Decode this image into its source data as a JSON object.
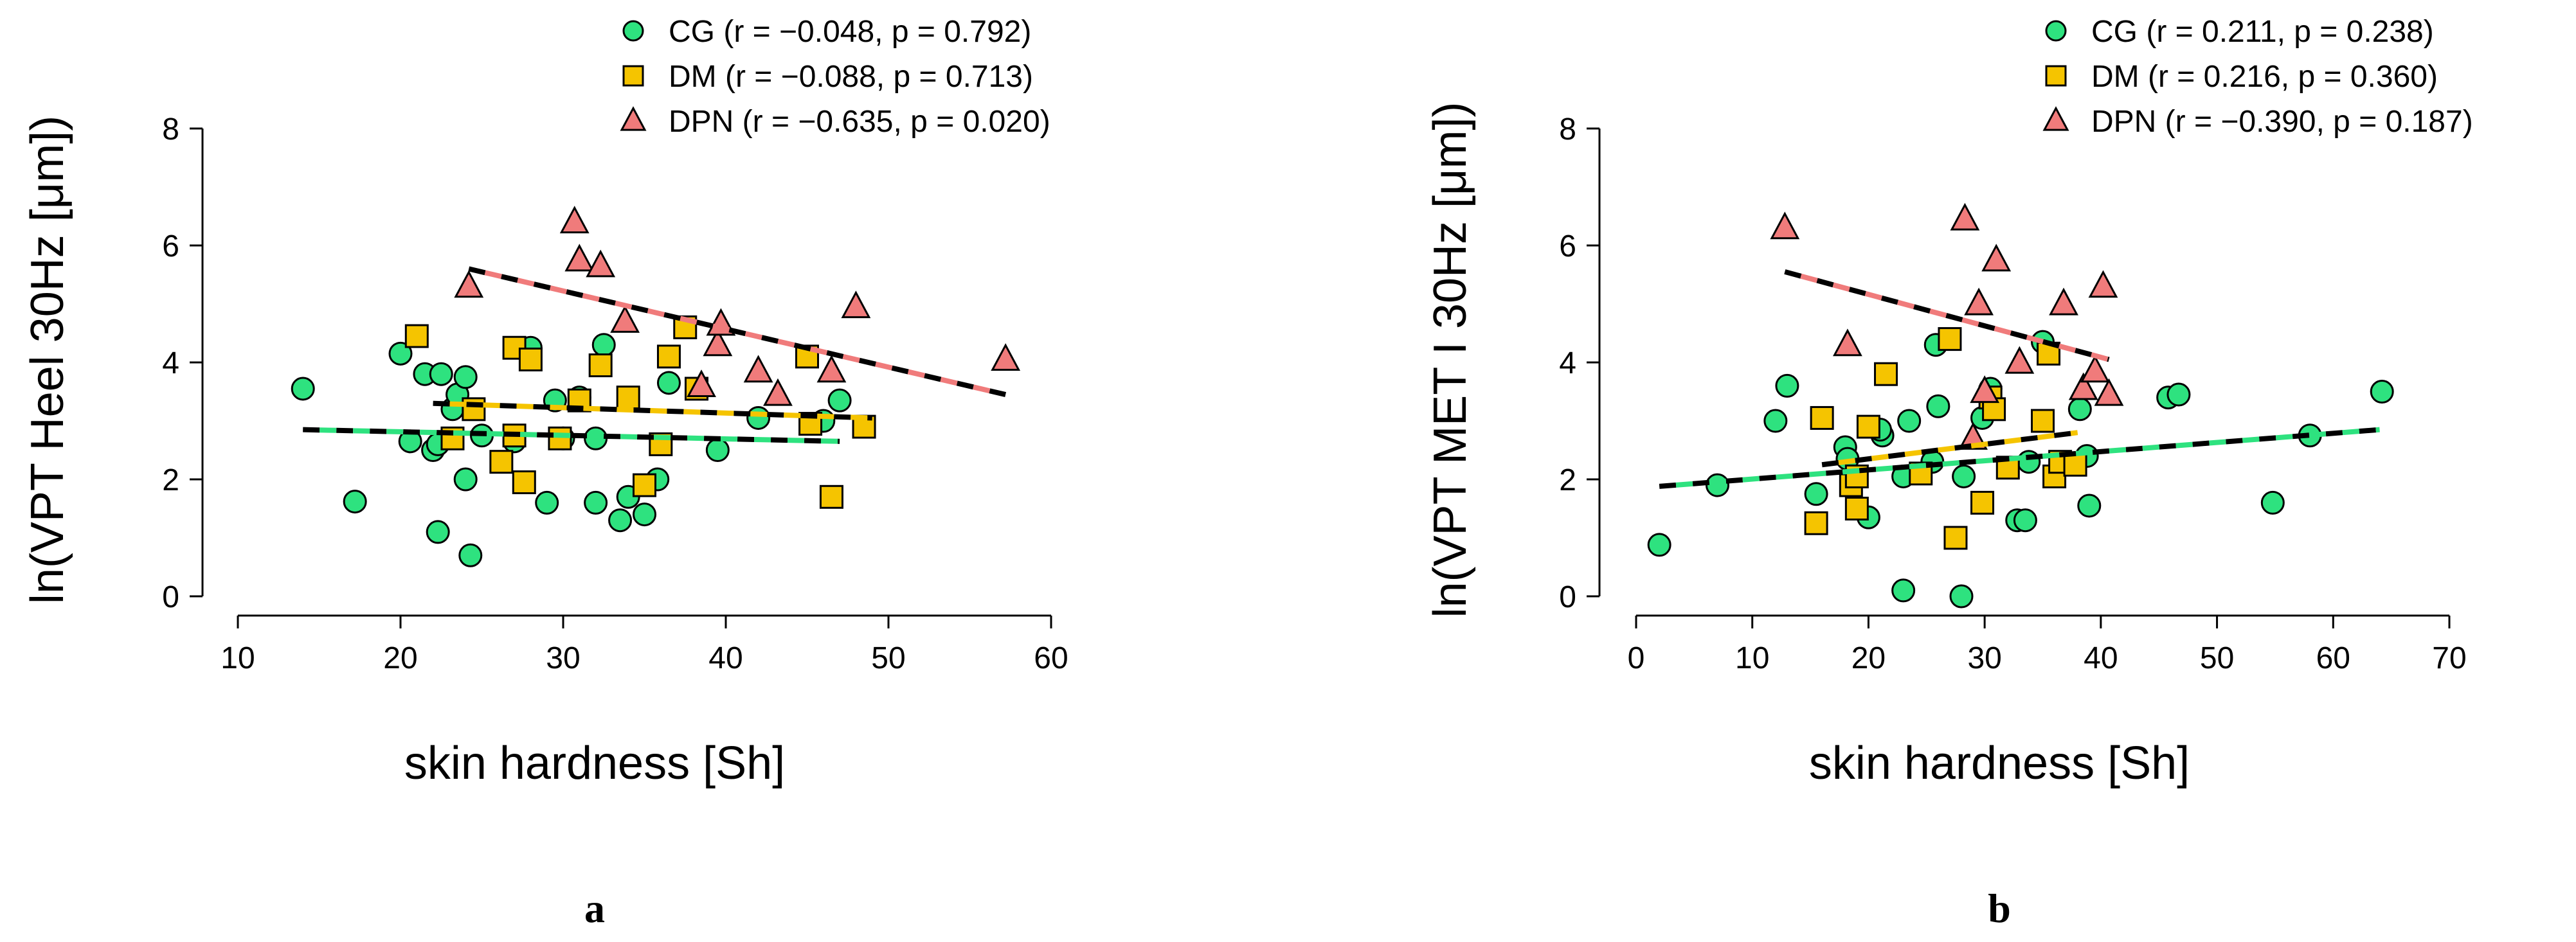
{
  "colors": {
    "CG": "#2ee27f",
    "DM": "#f5c400",
    "DPN": "#f07b7b",
    "CG_line": "#2ee27f",
    "DM_line": "#f5c400",
    "DPN_line": "#f07b7b",
    "outline": "#000000"
  },
  "chart_data": [
    {
      "type": "scatter",
      "panel_label": "a",
      "xlabel": "skin hardness [Sh]",
      "ylabel": "ln(VPT Heel 30Hz [μm])",
      "xlim": [
        10,
        60
      ],
      "ylim": [
        0,
        8
      ],
      "xticks": [
        10,
        20,
        30,
        40,
        50,
        60
      ],
      "yticks": [
        0,
        2,
        4,
        6,
        8
      ],
      "xtick_labels": [
        "10",
        "20",
        "30",
        "40",
        "50",
        "60"
      ],
      "ytick_labels": [
        "0",
        "2",
        "4",
        "6",
        "8"
      ],
      "grid": false,
      "legend_position": "top",
      "series": [
        {
          "name": "CG",
          "marker": "circle",
          "legend": "CG (r = −0.048, p = 0.792)",
          "points": [
            [
              14,
              3.55
            ],
            [
              17.2,
              1.62
            ],
            [
              20,
              4.15
            ],
            [
              20.6,
              2.65
            ],
            [
              21.5,
              3.8
            ],
            [
              22,
              2.5
            ],
            [
              22.3,
              2.6
            ],
            [
              22.5,
              3.8
            ],
            [
              23.2,
              3.2
            ],
            [
              23.5,
              3.45
            ],
            [
              24,
              3.75
            ],
            [
              24,
              2
            ],
            [
              24.3,
              0.7
            ],
            [
              25,
              2.75
            ],
            [
              22.3,
              1.1
            ],
            [
              27,
              2.65
            ],
            [
              28,
              4.25
            ],
            [
              29,
              1.6
            ],
            [
              29.5,
              3.35
            ],
            [
              30,
              2.7
            ],
            [
              31,
              3.4
            ],
            [
              32,
              2.7
            ],
            [
              32,
              1.6
            ],
            [
              32.5,
              4.3
            ],
            [
              33.5,
              1.3
            ],
            [
              34,
              1.7
            ],
            [
              35,
              1.4
            ],
            [
              35.8,
              2
            ],
            [
              36.5,
              3.65
            ],
            [
              39.5,
              2.5
            ],
            [
              42,
              3.05
            ],
            [
              46,
              3.0
            ],
            [
              47,
              3.35
            ]
          ],
          "trend": {
            "x": [
              14,
              47
            ],
            "y": [
              2.85,
              2.65
            ]
          }
        },
        {
          "name": "DM",
          "marker": "square",
          "legend": "DM (r = −0.088, p = 0.713)",
          "points": [
            [
              21,
              4.45
            ],
            [
              23.2,
              2.7
            ],
            [
              24.5,
              3.2
            ],
            [
              26.2,
              2.3
            ],
            [
              27,
              4.25
            ],
            [
              27,
              2.75
            ],
            [
              27.6,
              1.95
            ],
            [
              28,
              4.05
            ],
            [
              29.8,
              2.7
            ],
            [
              31,
              3.35
            ],
            [
              32.3,
              3.95
            ],
            [
              34,
              3.4
            ],
            [
              35,
              1.9
            ],
            [
              36,
              2.6
            ],
            [
              36.5,
              4.1
            ],
            [
              37.5,
              4.6
            ],
            [
              38.2,
              3.55
            ],
            [
              45,
              4.1
            ],
            [
              45.2,
              2.95
            ],
            [
              46.5,
              1.7
            ],
            [
              48.5,
              2.9
            ]
          ],
          "trend": {
            "x": [
              22,
              49
            ],
            "y": [
              3.3,
              3.05
            ]
          }
        },
        {
          "name": "DPN",
          "marker": "triangle",
          "legend": "DPN (r = −0.635, p = 0.020)",
          "points": [
            [
              24.2,
              5.3
            ],
            [
              30.7,
              6.4
            ],
            [
              31,
              5.75
            ],
            [
              32.3,
              5.65
            ],
            [
              33.8,
              4.7
            ],
            [
              38.5,
              3.6
            ],
            [
              39.5,
              4.3
            ],
            [
              39.7,
              4.65
            ],
            [
              42,
              3.85
            ],
            [
              43.2,
              3.45
            ],
            [
              46.5,
              3.85
            ],
            [
              48,
              4.95
            ],
            [
              57.2,
              4.05
            ]
          ],
          "trend": {
            "x": [
              24.2,
              57.2
            ],
            "y": [
              5.6,
              3.45
            ]
          }
        }
      ]
    },
    {
      "type": "scatter",
      "panel_label": "b",
      "xlabel": "skin hardness [Sh]",
      "ylabel": "ln(VPT MET I 30Hz [μm])",
      "xlim": [
        0,
        70
      ],
      "ylim": [
        0,
        8
      ],
      "xticks": [
        0,
        10,
        20,
        30,
        40,
        50,
        60,
        70
      ],
      "yticks": [
        0,
        2,
        4,
        6,
        8
      ],
      "xtick_labels": [
        "0",
        "10",
        "20",
        "30",
        "40",
        "50",
        "60",
        "70"
      ],
      "ytick_labels": [
        "0",
        "2",
        "4",
        "6",
        "8"
      ],
      "grid": false,
      "legend_position": "top-right",
      "series": [
        {
          "name": "CG",
          "marker": "circle",
          "legend": "CG (r = 0.211, p = 0.238)",
          "points": [
            [
              2,
              0.88
            ],
            [
              7,
              1.9
            ],
            [
              12,
              3.0
            ],
            [
              13,
              3.6
            ],
            [
              15.5,
              1.75
            ],
            [
              18,
              2.55
            ],
            [
              18.2,
              2.35
            ],
            [
              20,
              1.35
            ],
            [
              21.2,
              2.75
            ],
            [
              21,
              2.85
            ],
            [
              23,
              2.05
            ],
            [
              23,
              0.1
            ],
            [
              23.5,
              3.0
            ],
            [
              25.5,
              2.3
            ],
            [
              25.8,
              4.3
            ],
            [
              26,
              3.25
            ],
            [
              27.5,
              1.0
            ],
            [
              28,
              0
            ],
            [
              28.2,
              2.05
            ],
            [
              29.8,
              3.05
            ],
            [
              30.5,
              3.55
            ],
            [
              32.8,
              1.3
            ],
            [
              33.5,
              1.3
            ],
            [
              33.8,
              2.3
            ],
            [
              35,
              4.35
            ],
            [
              38.2,
              3.2
            ],
            [
              38.8,
              2.4
            ],
            [
              39,
              1.55
            ],
            [
              45.8,
              3.4
            ],
            [
              46.7,
              3.45
            ],
            [
              54.8,
              1.6
            ],
            [
              58,
              2.75
            ],
            [
              64.2,
              3.5
            ]
          ],
          "trend": {
            "x": [
              2,
              64
            ],
            "y": [
              1.88,
              2.85
            ]
          }
        },
        {
          "name": "DM",
          "marker": "square",
          "legend": "DM (r = 0.216, p = 0.360)",
          "points": [
            [
              15.5,
              1.25
            ],
            [
              16,
              3.05
            ],
            [
              18.5,
              1.9
            ],
            [
              19,
              2.05
            ],
            [
              19,
              1.5
            ],
            [
              20,
              2.9
            ],
            [
              21.5,
              3.8
            ],
            [
              24.5,
              2.1
            ],
            [
              27,
              4.4
            ],
            [
              27.5,
              1.0
            ],
            [
              29.8,
              1.6
            ],
            [
              30.5,
              3.4
            ],
            [
              30.8,
              3.2
            ],
            [
              32,
              2.2
            ],
            [
              35,
              3.0
            ],
            [
              35.5,
              4.15
            ],
            [
              36,
              2.05
            ],
            [
              36.5,
              2.3
            ],
            [
              37.8,
              2.25
            ]
          ],
          "trend": {
            "x": [
              16,
              38
            ],
            "y": [
              2.25,
              2.8
            ]
          }
        },
        {
          "name": "DPN",
          "marker": "triangle",
          "legend": "DPN (r = −0.390, p = 0.187)",
          "points": [
            [
              12.8,
              6.3
            ],
            [
              18.2,
              4.3
            ],
            [
              28.3,
              6.45
            ],
            [
              29,
              2.7
            ],
            [
              29.5,
              5.0
            ],
            [
              30,
              3.5
            ],
            [
              31,
              5.75
            ],
            [
              33,
              4.0
            ],
            [
              36.8,
              5.0
            ],
            [
              38.5,
              3.55
            ],
            [
              39.5,
              3.85
            ],
            [
              40.2,
              5.3
            ],
            [
              40.7,
              3.45
            ]
          ],
          "trend": {
            "x": [
              12.8,
              40.7
            ],
            "y": [
              5.55,
              4.05
            ]
          }
        }
      ]
    }
  ]
}
